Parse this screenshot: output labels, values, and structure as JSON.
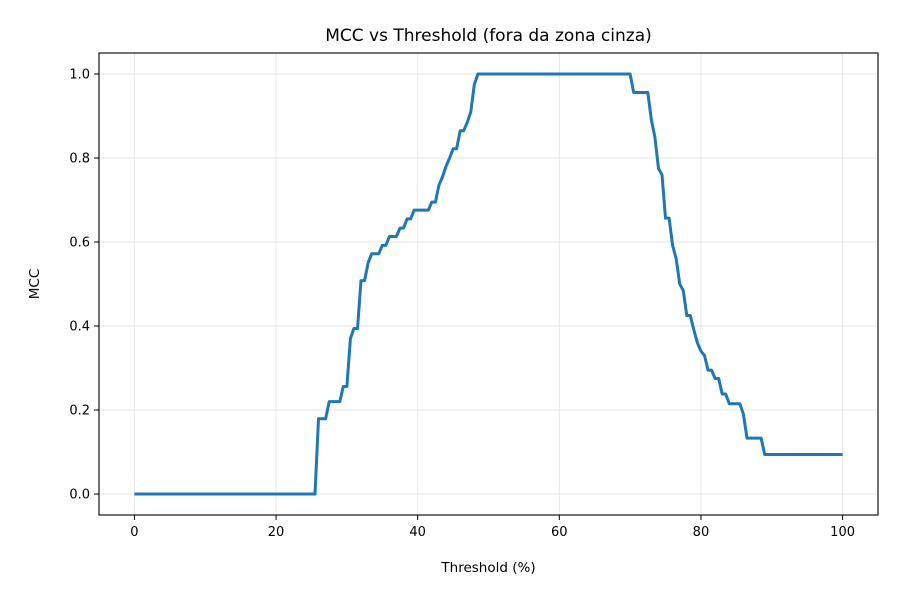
{
  "chart_data": {
    "type": "line",
    "title": "MCC vs Threshold (fora da zona cinza)",
    "xlabel": "Threshold (%)",
    "ylabel": "MCC",
    "xlim": [
      -5,
      105
    ],
    "ylim": [
      -0.05,
      1.05
    ],
    "xticks": [
      0,
      20,
      40,
      60,
      80,
      100
    ],
    "yticks": [
      0.0,
      0.2,
      0.4,
      0.6,
      0.8,
      1.0
    ],
    "xtick_labels": [
      "0",
      "20",
      "40",
      "60",
      "80",
      "100"
    ],
    "ytick_labels": [
      "0.0",
      "0.2",
      "0.4",
      "0.6",
      "0.8",
      "1.0"
    ],
    "grid": true,
    "series": [
      {
        "color": "#1f77b4",
        "x": [
          0,
          25.5,
          26,
          27,
          27.5,
          29,
          29.5,
          30,
          30.5,
          31,
          31.5,
          32,
          32.5,
          33,
          33.5,
          34,
          34.5,
          35,
          35.5,
          36,
          36.5,
          37,
          37.5,
          38,
          38.5,
          39,
          39.5,
          40,
          40.5,
          41,
          41.5,
          42,
          42.5,
          43,
          43.5,
          44,
          44.5,
          45,
          45.5,
          46,
          46.5,
          47,
          47.5,
          48,
          48.5,
          49,
          49.5,
          50,
          70,
          70.5,
          71,
          72.5,
          73,
          73.5,
          74,
          74.5,
          75,
          75.5,
          76,
          76.5,
          77,
          77.5,
          78,
          78.5,
          79,
          79.5,
          80,
          80.5,
          81,
          81.5,
          82,
          82.5,
          83,
          83.5,
          84,
          84.5,
          85,
          85.5,
          86,
          86.5,
          87,
          87.5,
          88,
          88.5,
          89,
          89.5,
          90,
          95,
          100
        ],
        "y": [
          0.0,
          0.0,
          0.179,
          0.179,
          0.22,
          0.22,
          0.256,
          0.256,
          0.37,
          0.394,
          0.394,
          0.508,
          0.508,
          0.55,
          0.572,
          0.572,
          0.572,
          0.592,
          0.592,
          0.613,
          0.613,
          0.613,
          0.633,
          0.633,
          0.655,
          0.655,
          0.676,
          0.676,
          0.676,
          0.676,
          0.676,
          0.695,
          0.695,
          0.735,
          0.755,
          0.78,
          0.8,
          0.822,
          0.822,
          0.865,
          0.865,
          0.885,
          0.91,
          0.975,
          1.0,
          1.0,
          1.0,
          1.0,
          1.0,
          0.956,
          0.956,
          0.956,
          0.89,
          0.85,
          0.775,
          0.76,
          0.657,
          0.657,
          0.592,
          0.56,
          0.5,
          0.484,
          0.425,
          0.425,
          0.39,
          0.36,
          0.34,
          0.33,
          0.295,
          0.295,
          0.275,
          0.275,
          0.238,
          0.238,
          0.215,
          0.215,
          0.215,
          0.215,
          0.19,
          0.133,
          0.133,
          0.133,
          0.133,
          0.133,
          0.094,
          0.094,
          0.094,
          0.094,
          0.094
        ]
      }
    ]
  }
}
